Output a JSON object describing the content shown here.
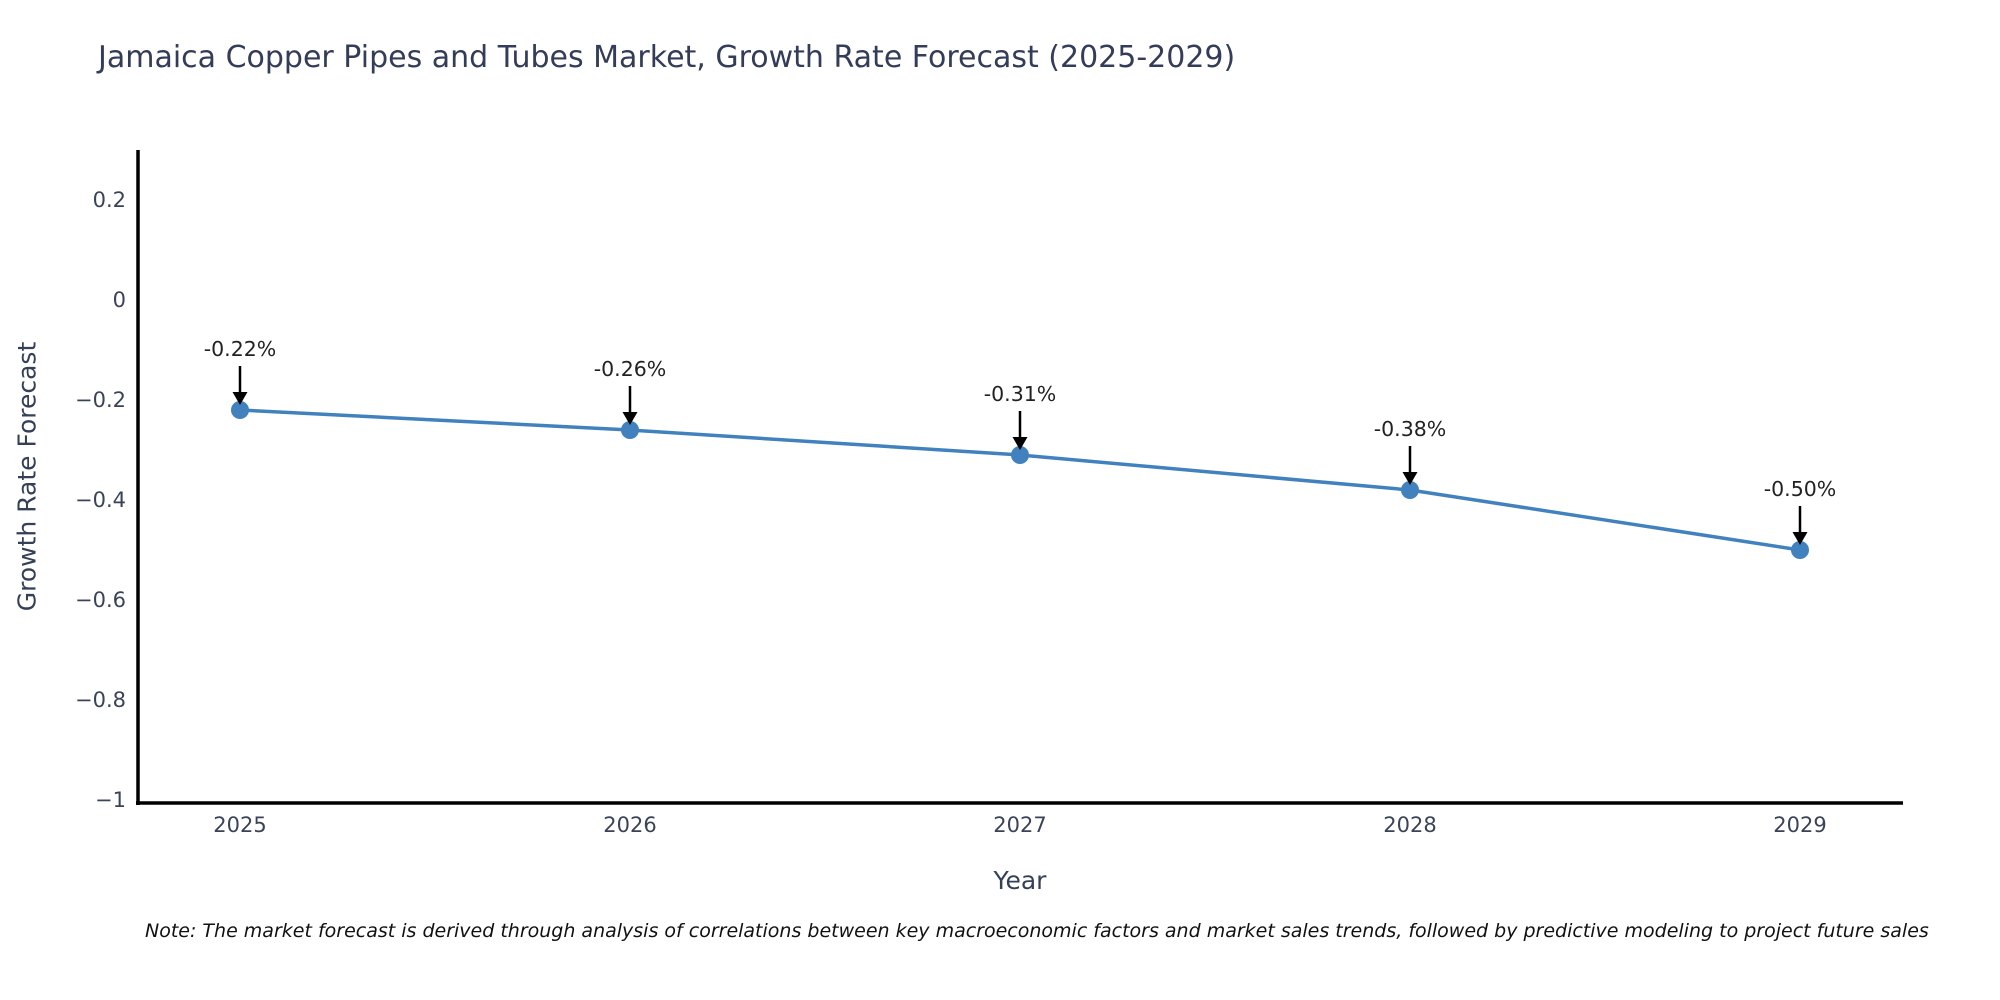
{
  "note": "Note: The market forecast is derived through analysis of correlations between key macroeconomic factors and market sales trends, followed by predictive modeling to project future sales",
  "chart_data": {
    "type": "line",
    "title": "Jamaica Copper Pipes and Tubes Market, Growth Rate Forecast (2025-2029)",
    "xlabel": "Year",
    "ylabel": "Growth Rate Forecast",
    "x": [
      2025,
      2026,
      2027,
      2028,
      2029
    ],
    "values": [
      -0.22,
      -0.26,
      -0.31,
      -0.38,
      -0.5
    ],
    "point_labels": [
      "-0.22%",
      "-0.26%",
      "-0.31%",
      "-0.38%",
      "-0.50%"
    ],
    "x_tick_labels": [
      "2025",
      "2026",
      "2027",
      "2028",
      "2029"
    ],
    "y_ticks": {
      "values": [
        0.2,
        0,
        -0.2,
        -0.4,
        -0.6,
        -0.8,
        -1
      ],
      "labels": [
        "0.2",
        "0",
        "−0.2",
        "−0.4",
        "−0.6",
        "−0.8",
        "−1"
      ]
    },
    "ylim": [
      -1,
      0.3
    ],
    "grid": false,
    "legend": "none",
    "line_color": "#4182be",
    "marker_color": "#4182be",
    "annotation_text_color": "#222222",
    "annotation_arrow_color": "#000000",
    "axis_color": "#000000",
    "tick_text_color": "#3a4358"
  }
}
